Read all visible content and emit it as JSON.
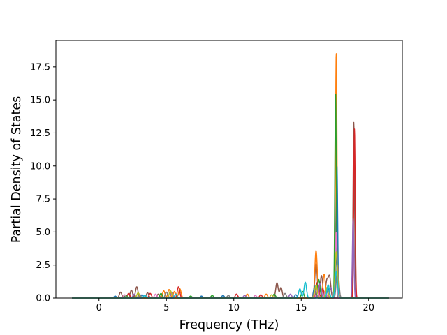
{
  "chart_data": {
    "type": "line",
    "title": "",
    "xlabel": "Frequency (THz)",
    "ylabel": "Partial Density of States",
    "xlim": [
      -3.2,
      22.5
    ],
    "ylim": [
      0,
      19.5
    ],
    "xticks": [
      0,
      5,
      10,
      15,
      20
    ],
    "yticks": [
      0.0,
      2.5,
      5.0,
      7.5,
      10.0,
      12.5,
      15.0,
      17.5
    ],
    "xtick_labels": [
      "0",
      "5",
      "10",
      "15",
      "20"
    ],
    "ytick_labels": [
      "0.0",
      "2.5",
      "5.0",
      "7.5",
      "10.0",
      "12.5",
      "15.0",
      "17.5"
    ],
    "grid": false,
    "legend": "none",
    "x_range_data": [
      -2.0,
      21.5
    ],
    "series": [
      {
        "color": "#8c564b",
        "peaks": [
          [
            1.6,
            0.45
          ],
          [
            2.4,
            0.6
          ],
          [
            2.8,
            0.85
          ],
          [
            3.6,
            0.4
          ],
          [
            4.4,
            0.3
          ],
          [
            13.2,
            1.15
          ],
          [
            13.5,
            0.8
          ],
          [
            16.1,
            2.6
          ],
          [
            16.5,
            1.7
          ],
          [
            16.9,
            1.3
          ],
          [
            17.1,
            1.6
          ],
          [
            17.6,
            3.0
          ],
          [
            18.9,
            13.3
          ]
        ]
      },
      {
        "color": "#ff7f0e",
        "peaks": [
          [
            4.8,
            0.55
          ],
          [
            5.2,
            0.65
          ],
          [
            5.6,
            0.5
          ],
          [
            6.0,
            0.7
          ],
          [
            11.0,
            0.3
          ],
          [
            12.4,
            0.3
          ],
          [
            16.1,
            3.6
          ],
          [
            16.7,
            1.8
          ],
          [
            17.6,
            18.6
          ]
        ]
      },
      {
        "color": "#d62728",
        "peaks": [
          [
            2.2,
            0.35
          ],
          [
            3.8,
            0.35
          ],
          [
            5.9,
            0.85
          ],
          [
            10.2,
            0.3
          ],
          [
            12.0,
            0.25
          ],
          [
            16.2,
            1.2
          ],
          [
            16.6,
            0.7
          ],
          [
            18.95,
            12.8
          ]
        ]
      },
      {
        "color": "#1f77b4",
        "peaks": [
          [
            1.2,
            0.15
          ],
          [
            3.2,
            0.25
          ],
          [
            7.6,
            0.15
          ],
          [
            9.2,
            0.2
          ],
          [
            14.6,
            0.25
          ],
          [
            16.0,
            0.9
          ],
          [
            17.0,
            0.7
          ],
          [
            17.65,
            10.0
          ]
        ]
      },
      {
        "color": "#2ca02c",
        "peaks": [
          [
            2.0,
            0.2
          ],
          [
            4.6,
            0.35
          ],
          [
            6.8,
            0.15
          ],
          [
            8.4,
            0.2
          ],
          [
            13.0,
            0.3
          ],
          [
            15.1,
            0.5
          ],
          [
            16.3,
            1.4
          ],
          [
            17.55,
            15.5
          ]
        ]
      },
      {
        "color": "#9467bd",
        "peaks": [
          [
            2.6,
            0.3
          ],
          [
            5.4,
            0.4
          ],
          [
            10.8,
            0.2
          ],
          [
            14.2,
            0.3
          ],
          [
            16.4,
            1.1
          ],
          [
            17.2,
            0.8
          ],
          [
            18.85,
            6.0
          ]
        ]
      },
      {
        "color": "#e377c2",
        "peaks": [
          [
            1.9,
            0.25
          ],
          [
            4.2,
            0.3
          ],
          [
            11.6,
            0.2
          ],
          [
            16.2,
            0.6
          ],
          [
            16.8,
            0.5
          ],
          [
            17.6,
            5.0
          ]
        ]
      },
      {
        "color": "#7f7f7f",
        "peaks": [
          [
            3.0,
            0.3
          ],
          [
            5.0,
            0.45
          ],
          [
            9.6,
            0.2
          ],
          [
            13.8,
            0.35
          ],
          [
            16.0,
            0.5
          ],
          [
            17.7,
            2.5
          ]
        ]
      },
      {
        "color": "#bcbd22",
        "peaks": [
          [
            2.9,
            0.4
          ],
          [
            5.3,
            0.55
          ],
          [
            12.8,
            0.25
          ],
          [
            16.1,
            1.0
          ],
          [
            16.9,
            0.8
          ],
          [
            17.6,
            3.5
          ]
        ]
      },
      {
        "color": "#17becf",
        "peaks": [
          [
            3.4,
            0.2
          ],
          [
            5.7,
            0.3
          ],
          [
            14.9,
            0.7
          ],
          [
            15.3,
            1.2
          ],
          [
            17.0,
            1.0
          ],
          [
            17.6,
            2.0
          ]
        ]
      }
    ]
  }
}
